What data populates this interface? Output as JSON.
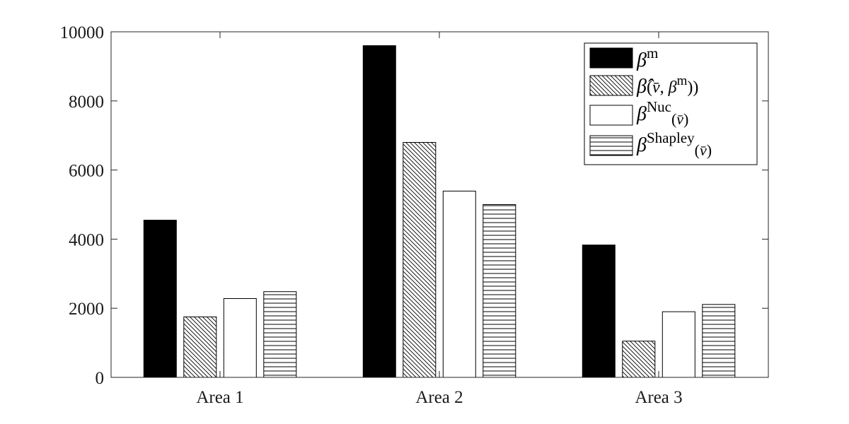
{
  "chart_data": {
    "type": "bar",
    "categories": [
      "Area 1",
      "Area 2",
      "Area 3"
    ],
    "series": [
      {
        "name": "β^m",
        "values": [
          4550,
          9600,
          3830
        ],
        "fill": "solid",
        "color": "#000000"
      },
      {
        "name": "β̂(v̄, β^m))",
        "values": [
          1750,
          6800,
          1050
        ],
        "fill": "diagonal-hatch",
        "color": "#000000"
      },
      {
        "name": "β^Nuc(v̄)",
        "values": [
          2280,
          5390,
          1900
        ],
        "fill": "white",
        "color": "#000000"
      },
      {
        "name": "β^Shapley(v̄)",
        "values": [
          2480,
          5000,
          2110
        ],
        "fill": "horizontal-hatch",
        "color": "#000000"
      }
    ],
    "ylim": [
      0,
      10000
    ],
    "yticks": [
      0,
      2000,
      4000,
      6000,
      8000,
      10000
    ],
    "legend_position": "top-right",
    "title": "",
    "xlabel": "",
    "ylabel": ""
  }
}
